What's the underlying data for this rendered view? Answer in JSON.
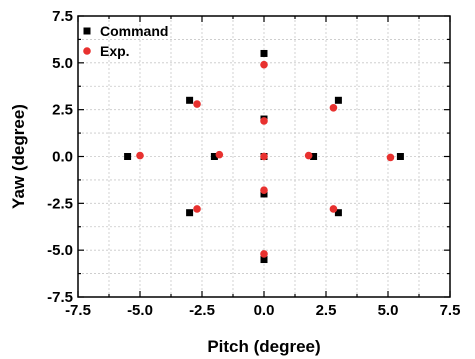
{
  "chart_data": {
    "type": "scatter",
    "xlabel": "Pitch (degree)",
    "ylabel": "Yaw (degree)",
    "xlim": [
      -7.5,
      7.5
    ],
    "ylim": [
      -7.5,
      7.5
    ],
    "xticks": [
      "-7.5",
      "-5.0",
      "-2.5",
      "0.0",
      "2.5",
      "5.0",
      "7.5"
    ],
    "yticks": [
      "-7.5",
      "-5.0",
      "-2.5",
      "0.0",
      "2.5",
      "5.0",
      "7.5"
    ],
    "grid": true,
    "legend_position": "top-left",
    "series": [
      {
        "name": "Command",
        "marker": "square",
        "color": "#000000",
        "x": [
          0,
          0,
          0,
          0,
          0,
          -3,
          3,
          -3,
          3,
          -5.5,
          -2,
          2,
          5.5
        ],
        "y": [
          5.5,
          2.0,
          -2.0,
          -5.5,
          0,
          3.0,
          3.0,
          -3.0,
          -3.0,
          0,
          0,
          0,
          0
        ]
      },
      {
        "name": "Exp.",
        "marker": "circle",
        "color": "#e8312f",
        "x": [
          0,
          0,
          0,
          0,
          0,
          -2.7,
          2.8,
          -2.7,
          2.8,
          -5.0,
          -1.8,
          1.8,
          5.1
        ],
        "y": [
          4.9,
          1.9,
          -1.8,
          -5.2,
          0,
          2.8,
          2.6,
          -2.8,
          -2.8,
          0.05,
          0.1,
          0.05,
          -0.05
        ]
      }
    ]
  }
}
